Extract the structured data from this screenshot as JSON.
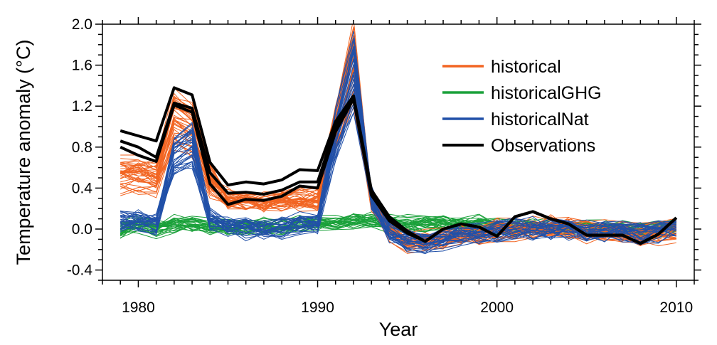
{
  "chart_data": {
    "type": "line",
    "xlabel": "Year",
    "ylabel": "Temperature anomaly (°C)",
    "xlim": [
      1978,
      2011
    ],
    "ylim": [
      -0.5,
      2.0
    ],
    "x_ticks": [
      1980,
      1990,
      2000,
      2010
    ],
    "x_tick_labels": [
      "1980",
      "1990",
      "2000",
      "2010"
    ],
    "y_ticks": [
      -0.4,
      0.0,
      0.4,
      0.8,
      1.2,
      1.6,
      2.0
    ],
    "y_tick_labels": [
      "-0.4",
      "0.0",
      "0.4",
      "0.8",
      "1.2",
      "1.6",
      "2.0"
    ],
    "grid": false,
    "legend_position": "top-right",
    "legend": [
      {
        "label": "historical",
        "color": "#f26522"
      },
      {
        "label": "historicalGHG",
        "color": "#1aa13a"
      },
      {
        "label": "historicalNat",
        "color": "#2150a8"
      },
      {
        "label": "Observations",
        "color": "#000000"
      }
    ],
    "x": [
      1979,
      1980,
      1981,
      1982,
      1983,
      1984,
      1985,
      1986,
      1987,
      1988,
      1989,
      1990,
      1991,
      1992,
      1993,
      1994,
      1995,
      1996,
      1997,
      1998,
      1999,
      2000,
      2001,
      2002,
      2003,
      2004,
      2005,
      2006,
      2007,
      2008,
      2009,
      2010
    ],
    "ensemble_base": {
      "historical": [
        0.55,
        0.55,
        0.5,
        1.1,
        1.0,
        0.5,
        0.3,
        0.28,
        0.25,
        0.28,
        0.3,
        0.3,
        1.0,
        1.65,
        0.3,
        0.0,
        -0.12,
        -0.12,
        -0.08,
        -0.05,
        -0.05,
        0.0,
        0.0,
        0.02,
        0.02,
        0.0,
        -0.02,
        -0.02,
        -0.02,
        -0.05,
        -0.04,
        0.0
      ],
      "historicalGHG": [
        -0.02,
        0.05,
        0.0,
        0.05,
        0.05,
        0.02,
        0.0,
        0.02,
        0.02,
        0.02,
        0.05,
        0.05,
        0.05,
        0.08,
        0.08,
        0.05,
        0.05,
        0.05,
        0.05,
        0.05,
        0.05,
        0.02,
        0.02,
        0.02,
        0.02,
        0.02,
        0.0,
        0.0,
        0.0,
        -0.02,
        0.0,
        0.02
      ],
      "historicalNat": [
        0.08,
        0.08,
        0.05,
        0.7,
        0.8,
        0.1,
        0.02,
        0.0,
        0.0,
        0.02,
        0.05,
        0.05,
        0.9,
        1.5,
        0.3,
        -0.05,
        -0.12,
        -0.15,
        -0.1,
        -0.05,
        -0.05,
        -0.02,
        0.0,
        0.0,
        0.0,
        0.0,
        -0.02,
        -0.02,
        -0.02,
        -0.05,
        -0.02,
        0.02
      ]
    },
    "ensemble_members": {
      "historical": 40,
      "historicalGHG": 30,
      "historicalNat": 30
    },
    "series": [
      {
        "values": [
          0.96,
          0.91,
          0.86,
          1.38,
          1.31,
          0.65,
          0.43,
          0.46,
          0.44,
          0.48,
          0.58,
          0.57,
          1.05,
          1.3,
          0.38,
          0.12,
          -0.02,
          -0.12,
          0.0,
          0.05,
          0.02,
          -0.07,
          0.12,
          0.17,
          0.1,
          0.05,
          -0.06,
          -0.06,
          -0.06,
          -0.14,
          -0.05,
          0.11
        ]
      },
      {
        "values": [
          0.86,
          0.8,
          0.7,
          1.23,
          1.18,
          0.55,
          0.35,
          0.36,
          0.34,
          0.38,
          0.46,
          0.46,
          1.0,
          1.29,
          0.35,
          0.1,
          -0.03,
          -0.12,
          0.0,
          0.05,
          0.02,
          -0.07,
          0.12,
          0.17,
          0.1,
          0.05,
          -0.06,
          -0.06,
          -0.06,
          -0.14,
          -0.05,
          0.11
        ]
      },
      {
        "values": [
          0.8,
          0.72,
          0.66,
          1.21,
          1.14,
          0.44,
          0.24,
          0.29,
          0.28,
          0.32,
          0.42,
          0.4,
          0.95,
          1.27,
          0.33,
          0.08,
          -0.04,
          -0.12,
          0.0,
          0.05,
          0.02,
          -0.07,
          0.12,
          0.17,
          0.1,
          0.05,
          -0.06,
          -0.06,
          -0.06,
          -0.14,
          -0.05,
          0.11
        ]
      }
    ]
  }
}
